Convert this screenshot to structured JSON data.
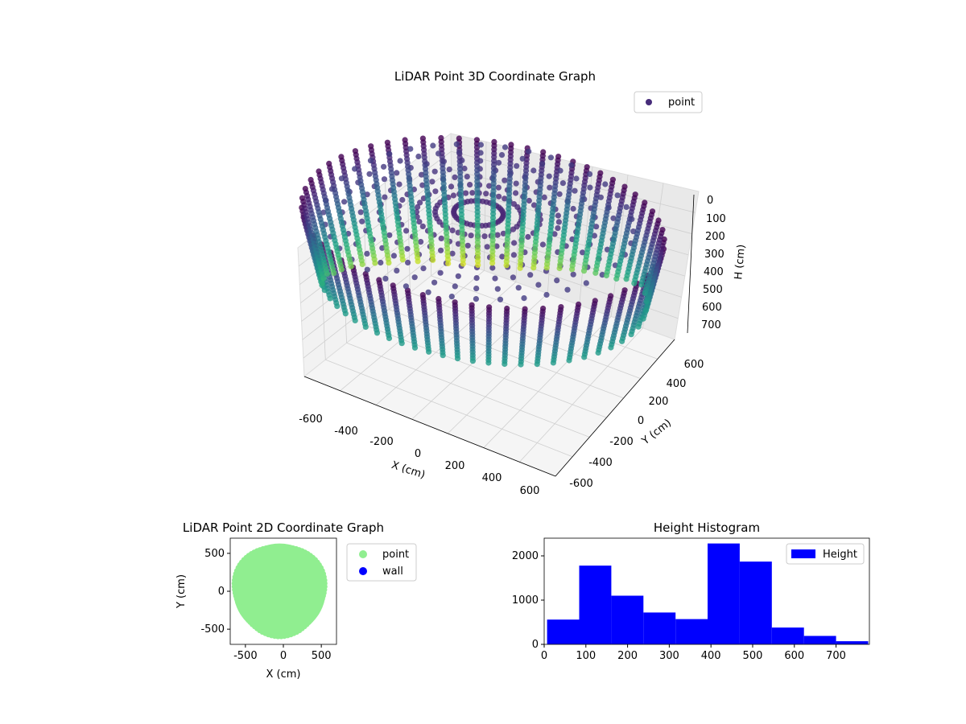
{
  "chart_data": [
    {
      "type": "scatter3d",
      "title": "LiDAR Point 3D Coordinate Graph",
      "xlabel": "X (cm)",
      "ylabel": "Y (cm)",
      "zlabel": "H (cm)",
      "xticks": [
        -600,
        -400,
        -200,
        0,
        200,
        400,
        600
      ],
      "yticks": [
        -600,
        -400,
        -200,
        0,
        200,
        400,
        600
      ],
      "zticks": [
        0,
        100,
        200,
        300,
        400,
        500,
        600,
        700
      ],
      "zinverted": true,
      "colormap": "viridis",
      "legend": {
        "label": "point",
        "position": "upper-right"
      },
      "description": "ring-shaped wall of points, radius ~600 cm, height 0-770 cm"
    },
    {
      "type": "scatter",
      "title": "LiDAR Point 2D Coordinate Graph",
      "xlabel": "X (cm)",
      "ylabel": "Y (cm)",
      "xticks": [
        -500,
        0,
        500
      ],
      "yticks": [
        -500,
        0,
        500
      ],
      "xlim": [
        -700,
        700
      ],
      "ylim": [
        -700,
        700
      ],
      "series": [
        {
          "name": "point",
          "color": "#90ee90"
        },
        {
          "name": "wall",
          "color": "#0000ff"
        }
      ],
      "legend_position": "outside-right"
    },
    {
      "type": "bar",
      "title": "Height Histogram",
      "xticks": [
        0,
        100,
        200,
        300,
        400,
        500,
        600,
        700
      ],
      "yticks": [
        0,
        1000,
        2000
      ],
      "xlim": [
        0,
        780
      ],
      "ylim": [
        0,
        2400
      ],
      "bins": [
        {
          "x0": 7,
          "x1": 84,
          "count": 560
        },
        {
          "x0": 84,
          "x1": 161,
          "count": 1780
        },
        {
          "x0": 161,
          "x1": 238,
          "count": 1100
        },
        {
          "x0": 238,
          "x1": 315,
          "count": 720
        },
        {
          "x0": 315,
          "x1": 392,
          "count": 570
        },
        {
          "x0": 392,
          "x1": 469,
          "count": 2280
        },
        {
          "x0": 469,
          "x1": 546,
          "count": 1870
        },
        {
          "x0": 546,
          "x1": 623,
          "count": 380
        },
        {
          "x0": 623,
          "x1": 700,
          "count": 190
        },
        {
          "x0": 700,
          "x1": 777,
          "count": 70
        }
      ],
      "color": "#0000ff",
      "legend": {
        "label": "Height",
        "position": "upper-right"
      }
    }
  ]
}
